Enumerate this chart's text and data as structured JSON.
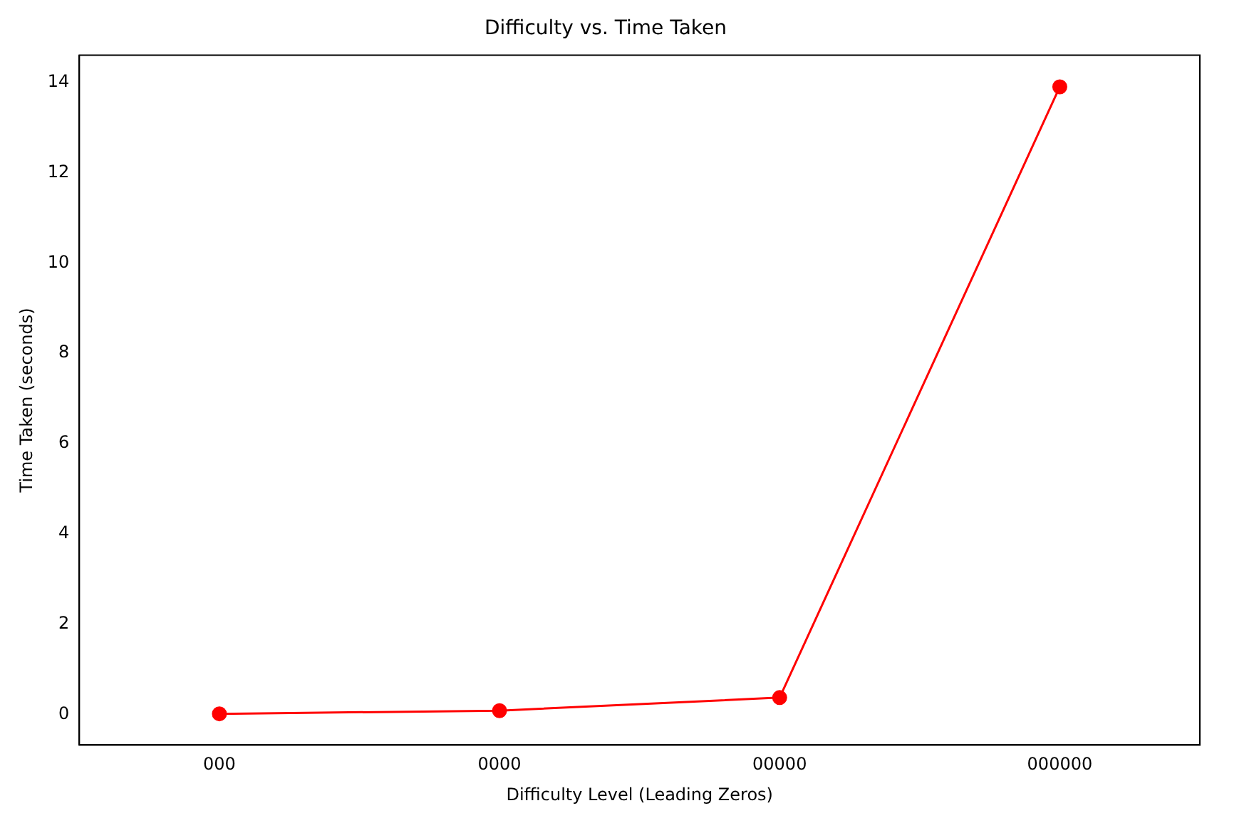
{
  "chart_data": {
    "type": "line",
    "title": "Difficulty vs. Time Taken",
    "xlabel": "Difficulty Level (Leading Zeros)",
    "ylabel": "Time Taken (seconds)",
    "categories": [
      "000",
      "0000",
      "00000",
      "000000"
    ],
    "series": [
      {
        "color": "#ff0000",
        "values": [
          0.01,
          0.08,
          0.37,
          13.9
        ]
      }
    ],
    "ylim": [
      -0.68,
      14.6
    ],
    "yticks": [
      0,
      2,
      4,
      6,
      8,
      10,
      12,
      14
    ],
    "grid": false,
    "legend": false,
    "marker": "circle",
    "line_style": "solid"
  }
}
